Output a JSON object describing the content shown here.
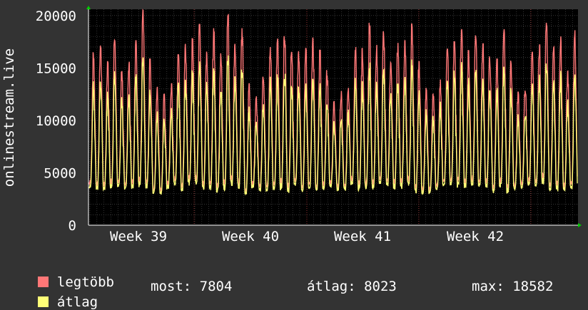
{
  "chart_data": {
    "type": "line",
    "ylabel": "onlinestream.live",
    "y_ticks": [
      "0",
      "5000",
      "10000",
      "15000",
      "20000"
    ],
    "ylim": [
      0,
      20600
    ],
    "x_ticks": [
      "Week 39",
      "Week 40",
      "Week 41",
      "Week 42"
    ],
    "grid": true,
    "background": "#000000",
    "series": [
      {
        "name": "legtöbb",
        "color": "#ff7777",
        "x": [],
        "values": []
      },
      {
        "name": "átlag",
        "color": "#ffff77",
        "x": [],
        "values": []
      }
    ],
    "daily_peaks": {
      "max": [
        16500,
        17300,
        15600,
        18700,
        14700,
        15600,
        17600,
        20700,
        15900,
        13200,
        12500,
        13500,
        16300,
        17300,
        17800,
        19200,
        16600,
        18800,
        16400,
        20200,
        17700,
        18800,
        13500,
        12300,
        14700,
        17000,
        17800,
        18600,
        17000,
        16600,
        16900,
        17900,
        16700,
        14800,
        11800,
        12800,
        13300,
        17000,
        16900,
        19300,
        17200,
        18600,
        15700,
        17400,
        17600,
        19200,
        15600,
        13100,
        12500,
        13900,
        16800,
        17500,
        18700,
        16700,
        18200,
        17300,
        16100,
        15900,
        18700,
        15700,
        12700,
        13400,
        16500,
        17200,
        19400,
        17000,
        18000,
        14700,
        18600
      ]
    },
    "daily_min": 2600,
    "legend": [
      {
        "label": "legtöbb",
        "color": "#ff7777"
      },
      {
        "label": "átlag",
        "color": "#ffff77"
      }
    ],
    "stats": {
      "now": "most: 7804",
      "avg": "átlag: 8023",
      "max": "max: 18582"
    }
  }
}
